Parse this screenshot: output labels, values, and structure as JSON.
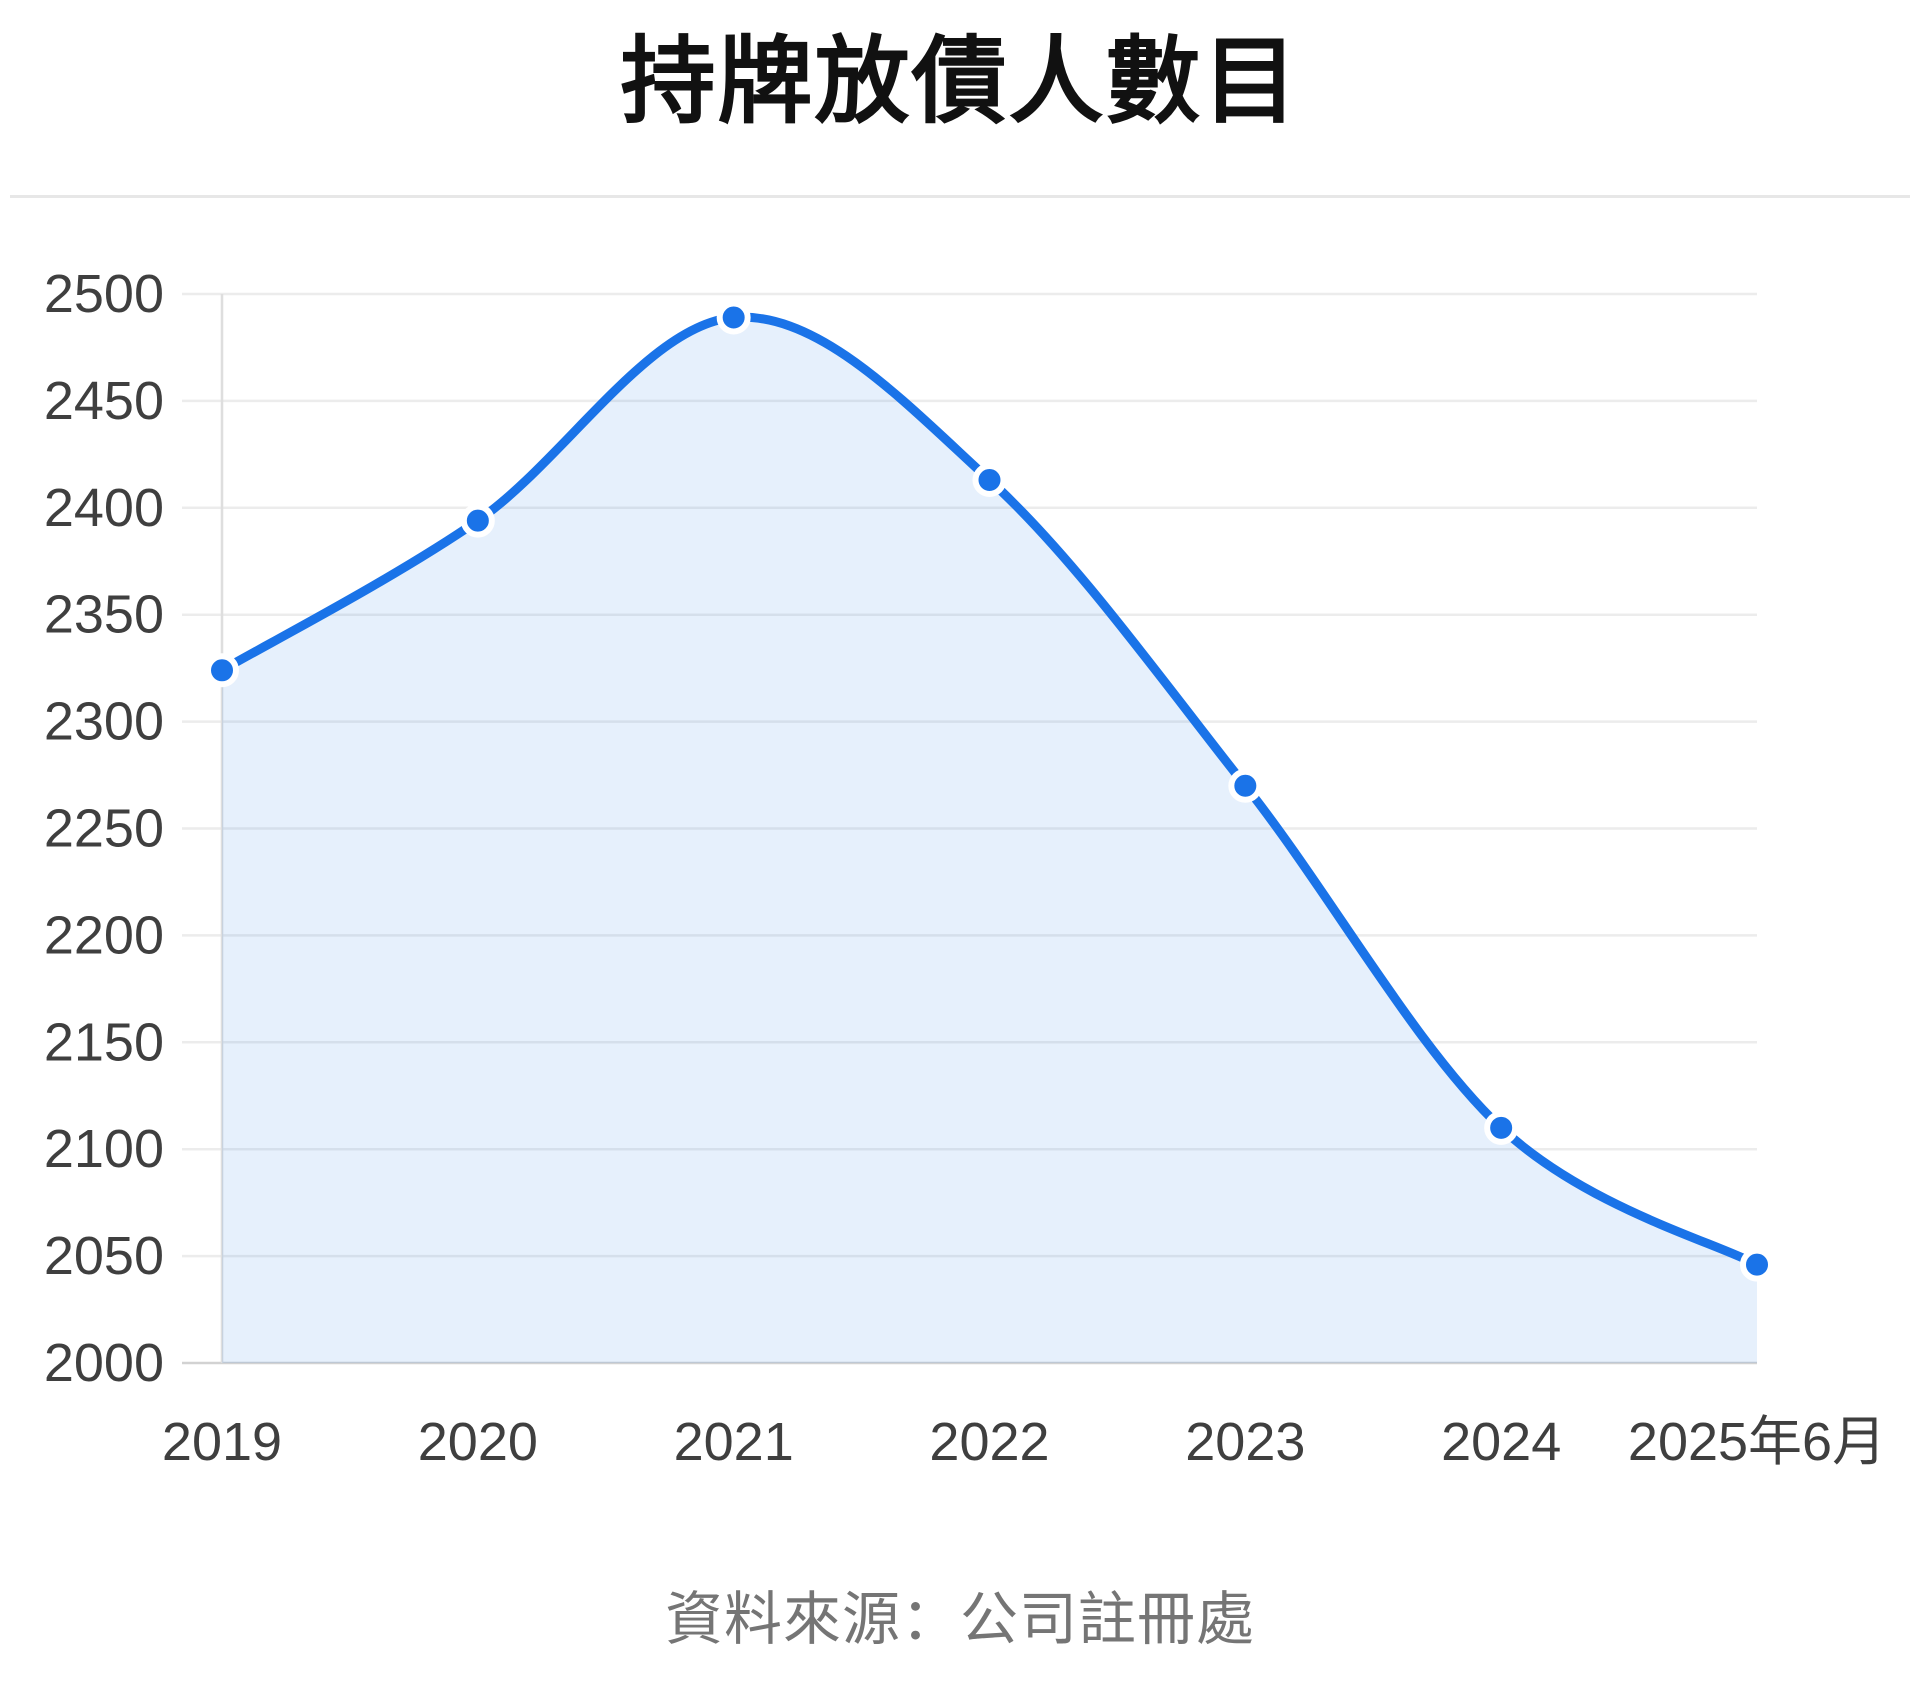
{
  "chart_data": {
    "type": "area",
    "title": "持牌放債人數目",
    "source": "資料來源：公司註冊處",
    "categories": [
      "2019",
      "2020",
      "2021",
      "2022",
      "2023",
      "2024",
      "2025年6月"
    ],
    "values": [
      2324,
      2394,
      2489,
      2413,
      2270,
      2110,
      2046
    ],
    "series_name": "持牌放債人數目",
    "xlabel": "",
    "ylabel": "",
    "ylim": [
      2000,
      2500
    ],
    "ytick_step": 50,
    "yticks": [
      "2500",
      "2450",
      "2400",
      "2350",
      "2300",
      "2250",
      "2200",
      "2150",
      "2100",
      "2050",
      "2000"
    ],
    "grid": true,
    "legend_position": "none",
    "colors": {
      "line": "#1a73e8",
      "point_fill": "#1a73e8",
      "point_ring": "#ffffff",
      "area_fill": "rgba(26,115,232,0.11)",
      "gridline": "#ececec",
      "baseline": "#d2d2d2",
      "axis_line": "#dedede",
      "tick_label": "#3f3f3f",
      "title_text": "#111111",
      "source_text": "#757575",
      "divider": "#e7e7e7"
    }
  }
}
